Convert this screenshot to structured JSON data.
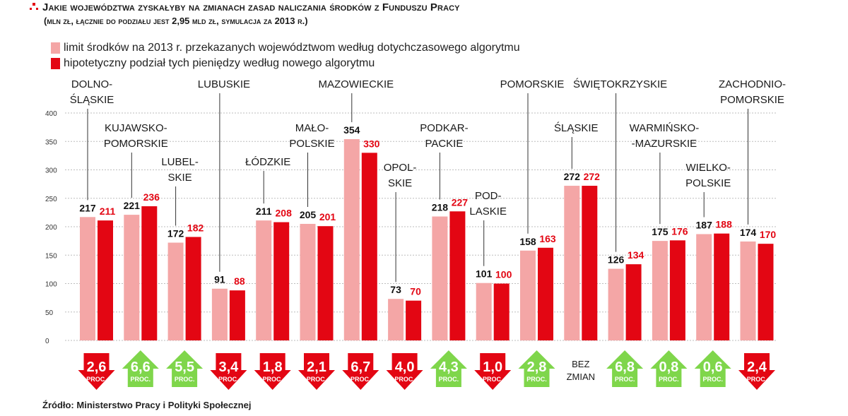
{
  "header": {
    "title": "Jakie województwa zyskałyby na zmianach zasad naliczania środków z Funduszu Pracy",
    "subtitle": "(mln zł, łącznie do podziału jest 2,95 mld zł, symulacja za 2013 r.)"
  },
  "legend": [
    {
      "label": "limit środków na 2013 r. przekazanych województwom według dotychczasowego algorytmu",
      "color": "#f4a6a6"
    },
    {
      "label": "hipotetyczny podział tych pieniędzy według nowego algorytmu",
      "color": "#e30613"
    }
  ],
  "source": "Źródło: Ministerstwo Pracy i Polityki Społecznej",
  "colors": {
    "old": "#f4a6a6",
    "new": "#e30613",
    "up": "#7fd64b",
    "down": "#e30613",
    "grid": "#bdbdbd"
  },
  "chart_data": {
    "type": "bar",
    "ylim": [
      0,
      400
    ],
    "yticks": [
      "0",
      "50",
      "100",
      "150",
      "200",
      "250",
      "300",
      "350",
      "400"
    ],
    "grid": true,
    "series": [
      {
        "name": "limit środków na 2013 r. przekazanych województwom według dotychczasowego algorytmu",
        "values": [
          217,
          221,
          172,
          91,
          211,
          205,
          354,
          73,
          218,
          101,
          158,
          272,
          126,
          175,
          187,
          174
        ]
      },
      {
        "name": "hipotetyczny podział tych pieniędzy według nowego algorytmu",
        "values": [
          211,
          236,
          182,
          88,
          208,
          201,
          330,
          70,
          227,
          100,
          163,
          272,
          134,
          176,
          188,
          170
        ]
      }
    ],
    "categories": [
      {
        "lines": [
          "DOLNO-",
          "ŚLĄSKIE"
        ],
        "value_old": "217",
        "value_new": "211",
        "change": "2,6",
        "direction": "down"
      },
      {
        "lines": [
          "KUJAWSKO-",
          "POMORSKIE"
        ],
        "value_old": "221",
        "value_new": "236",
        "change": "6,6",
        "direction": "up"
      },
      {
        "lines": [
          "LUBEL-",
          "SKIE"
        ],
        "value_old": "172",
        "value_new": "182",
        "change": "5,5",
        "direction": "up"
      },
      {
        "lines": [
          "LUBUSKIE"
        ],
        "value_old": "91",
        "value_new": "88",
        "change": "3,4",
        "direction": "down"
      },
      {
        "lines": [
          "ŁÓDZKIE"
        ],
        "value_old": "211",
        "value_new": "208",
        "change": "1,8",
        "direction": "down"
      },
      {
        "lines": [
          "MAŁO-",
          "POLSKIE"
        ],
        "value_old": "205",
        "value_new": "201",
        "change": "2,1",
        "direction": "down"
      },
      {
        "lines": [
          "MAZOWIECKIE"
        ],
        "value_old": "354",
        "value_new": "330",
        "change": "6,7",
        "direction": "down"
      },
      {
        "lines": [
          "OPOL-",
          "SKIE"
        ],
        "value_old": "73",
        "value_new": "70",
        "change": "4,0",
        "direction": "down"
      },
      {
        "lines": [
          "PODKAR-",
          "PACKIE"
        ],
        "value_old": "218",
        "value_new": "227",
        "change": "4,3",
        "direction": "up"
      },
      {
        "lines": [
          "POD-",
          "LASKIE"
        ],
        "value_old": "101",
        "value_new": "100",
        "change": "1,0",
        "direction": "down"
      },
      {
        "lines": [
          "POMORSKIE"
        ],
        "value_old": "158",
        "value_new": "163",
        "change": "2,8",
        "direction": "up"
      },
      {
        "lines": [
          "ŚLĄSKIE"
        ],
        "value_old": "272",
        "value_new": "272",
        "change": "",
        "direction": "none",
        "no_change_lines": [
          "BEZ",
          "ZMIAN"
        ]
      },
      {
        "lines": [
          "ŚWIĘTOKRZYSKIE"
        ],
        "value_old": "126",
        "value_new": "134",
        "change": "6,8",
        "direction": "up"
      },
      {
        "lines": [
          "WARMIŃSKO-",
          "-MAZURSKIE"
        ],
        "value_old": "175",
        "value_new": "176",
        "change": "0,8",
        "direction": "up"
      },
      {
        "lines": [
          "WIELKO-",
          "POLSKIE"
        ],
        "value_old": "187",
        "value_new": "188",
        "change": "0,6",
        "direction": "up"
      },
      {
        "lines": [
          "ZACHODNIO-",
          "POMORSKIE"
        ],
        "value_old": "174",
        "value_new": "170",
        "change": "2,4",
        "direction": "down"
      }
    ],
    "change_unit": "PROC."
  }
}
